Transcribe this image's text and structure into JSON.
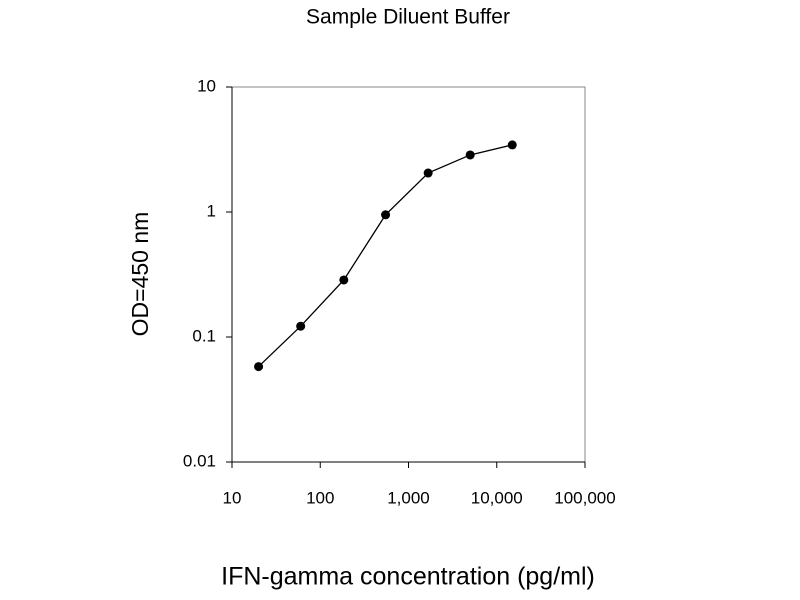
{
  "chart_data": {
    "type": "line",
    "title": "Sample Diluent Buffer",
    "x_label": "IFN-gamma concentration (pg/ml)",
    "y_label": "OD=450 nm",
    "x": [
      20,
      60,
      185,
      550,
      1670,
      5000,
      15000
    ],
    "values": [
      0.058,
      0.122,
      0.286,
      0.95,
      2.05,
      2.86,
      3.44
    ],
    "color": "#000000",
    "x_log": true,
    "y_log": true,
    "xlim": [
      10,
      100000
    ],
    "xticks": [
      10,
      100,
      {
        "value": 1000,
        "label": "1,000"
      },
      {
        "value": 10000,
        "label": "10,000"
      },
      {
        "value": 100000,
        "label": "100,000"
      }
    ],
    "ylim": [
      0.01,
      10
    ],
    "yticks": [
      0.01,
      0.1,
      1,
      10
    ],
    "grid": false
  }
}
